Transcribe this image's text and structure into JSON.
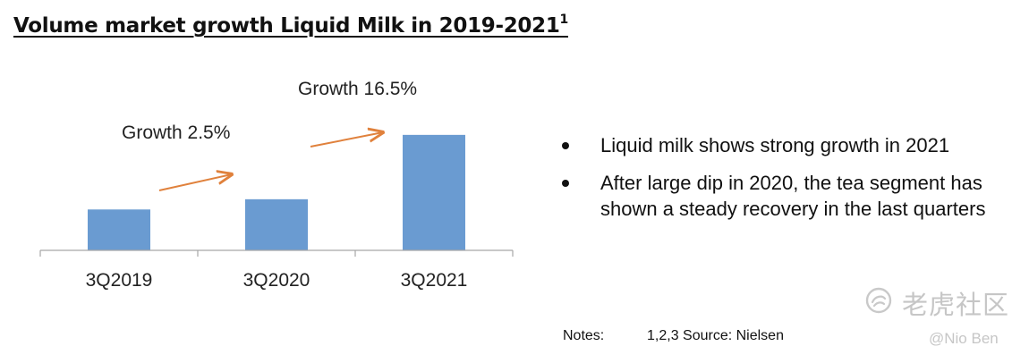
{
  "title": {
    "text": "Volume market growth Liquid Milk  in 2019-2021",
    "superscript": "1"
  },
  "chart_data": {
    "type": "bar",
    "categories": [
      "3Q2019",
      "3Q2020",
      "3Q2021"
    ],
    "values": [
      40,
      50,
      113
    ],
    "ylim": [
      0,
      140
    ],
    "title": "",
    "xlabel": "",
    "ylabel": "",
    "bar_color": "#6a9bd1",
    "axis_color": "#a6a6a6",
    "annotations": [
      {
        "text": "Growth 2.5%",
        "between": [
          "3Q2019",
          "3Q2020"
        ],
        "arrow_color": "#e0813c"
      },
      {
        "text": "Growth 16.5%",
        "between": [
          "3Q2020",
          "3Q2021"
        ],
        "arrow_color": "#e0813c"
      }
    ]
  },
  "bullets": [
    "Liquid milk shows strong growth in 2021",
    "After large dip in 2020, the tea segment has shown a steady recovery in the last quarters"
  ],
  "notes": {
    "label": "Notes:",
    "text": "1,2,3  Source: Nielsen"
  },
  "watermark": {
    "brand": "老虎社区",
    "user": "@Nio Ben",
    "icon": "tiger-logo-icon"
  }
}
